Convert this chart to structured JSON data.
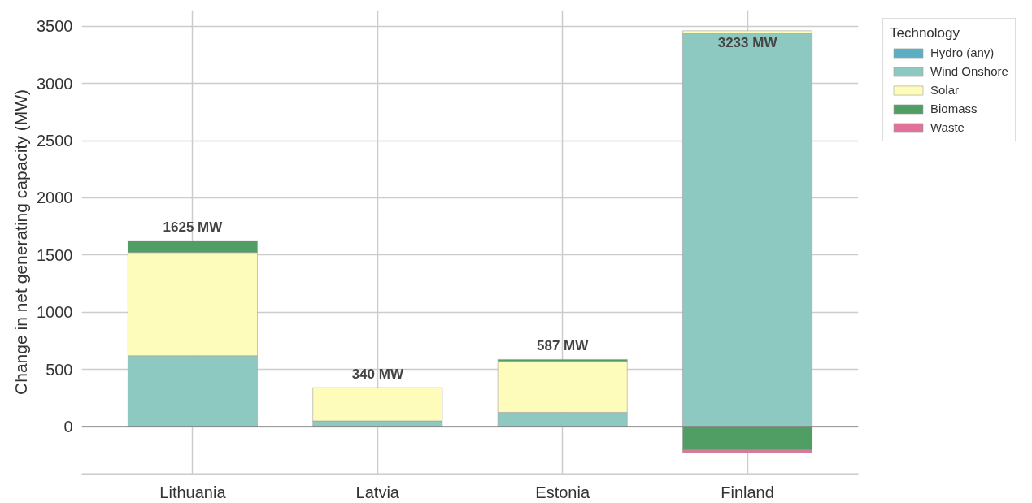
{
  "chart_data": {
    "type": "bar",
    "stacked": true,
    "ylabel": "Change in net generating capacity (MW)",
    "legend_title": "Technology",
    "categories": [
      "Lithuania",
      "Latvia",
      "Estonia",
      "Finland"
    ],
    "series": [
      {
        "name": "Hydro (any)",
        "color": "#5ab0c2",
        "values": [
          0,
          0,
          0,
          0
        ]
      },
      {
        "name": "Wind Onshore",
        "color": "#8dc9c0",
        "values": [
          620,
          50,
          125,
          3440
        ]
      },
      {
        "name": "Solar",
        "color": "#fefcbb",
        "values": [
          902,
          290,
          447,
          20
        ]
      },
      {
        "name": "Biomass",
        "color": "#519e64",
        "values": [
          103,
          0,
          15,
          -205
        ]
      },
      {
        "name": "Waste",
        "color": "#e2719c",
        "values": [
          0,
          0,
          0,
          -22
        ]
      }
    ],
    "totals": [
      "1625 MW",
      "340 MW",
      "587 MW",
      "3233 MW"
    ],
    "ylim": [
      -415,
      3640
    ],
    "yticks": [
      0,
      500,
      1000,
      1500,
      2000,
      2500,
      3000,
      3500
    ],
    "ref_lines": [
      {
        "axis": "y",
        "value": 0,
        "color": "#808080"
      }
    ],
    "grid": true,
    "legend": "top right"
  }
}
